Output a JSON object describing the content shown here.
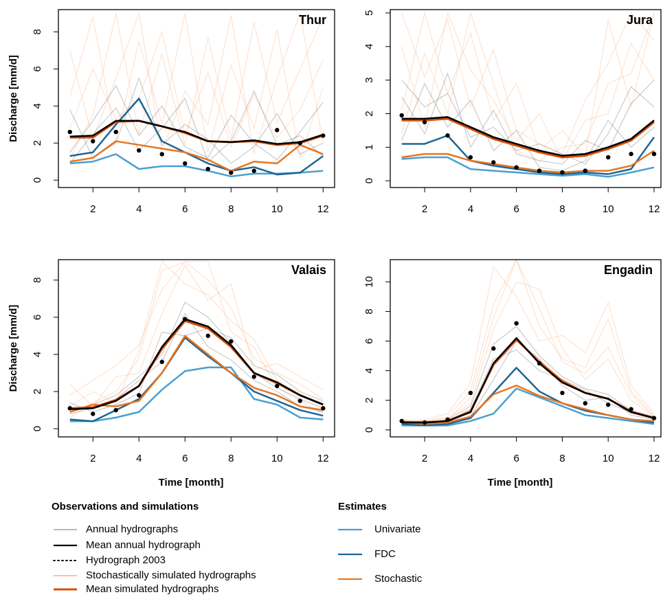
{
  "chart_data": [
    {
      "type": "line",
      "title": "Thur",
      "x": [
        1,
        2,
        3,
        4,
        5,
        6,
        7,
        8,
        9,
        10,
        11,
        12
      ],
      "xlim": [
        0.5,
        12.5
      ],
      "xticks": [
        2,
        4,
        6,
        8,
        10,
        12
      ],
      "ylim": [
        -0.4,
        9.2
      ],
      "yticks": [
        0,
        2,
        4,
        6,
        8
      ],
      "ylabel": "Discharge [mm/d]",
      "series": [
        {
          "lines": [
            [
              1.5,
              3.2,
              5.1,
              2.4,
              4.0,
              1.8,
              1.2,
              3.5,
              2.0,
              1.1,
              2.6,
              4.2
            ],
            [
              3.8,
              1.2,
              2.0,
              5.5,
              1.9,
              3.0,
              2.2,
              0.9,
              1.8,
              3.6,
              1.4,
              2.0
            ],
            [
              0.9,
              2.5,
              3.9,
              1.6,
              2.8,
              4.4,
              1.0,
              2.1,
              4.8,
              1.9,
              2.4,
              1.3
            ]
          ]
        },
        {
          "values": [
            2.35,
            2.4,
            3.2,
            3.2,
            2.9,
            2.6,
            2.1,
            2.05,
            2.15,
            1.95,
            2.05,
            2.45
          ]
        },
        {
          "values": [
            2.6,
            2.1,
            2.6,
            1.6,
            1.4,
            0.9,
            0.6,
            0.4,
            0.5,
            2.7,
            2.0,
            2.4
          ]
        },
        {
          "lines": [
            [
              4.5,
              8.8,
              2.1,
              7.5,
              3.0,
              9.0,
              1.5,
              6.2,
              2.8,
              8.1,
              1.2,
              5.0
            ],
            [
              1.2,
              3.5,
              9.0,
              2.5,
              6.8,
              1.9,
              7.7,
              2.2,
              8.5,
              3.1,
              6.0,
              8.8
            ],
            [
              7.0,
              2.2,
              5.5,
              9.0,
              1.6,
              4.8,
              3.0,
              8.9,
              1.4,
              5.5,
              9.0,
              2.0
            ],
            [
              2.8,
              6.0,
              3.3,
              4.4,
              8.0,
              2.5,
              5.8,
              1.8,
              4.6,
              2.3,
              3.8,
              6.5
            ]
          ]
        },
        {
          "values": [
            2.3,
            2.3,
            3.15,
            3.2,
            2.9,
            2.55,
            2.1,
            2.05,
            2.1,
            1.9,
            2.0,
            2.4
          ]
        },
        {
          "values": [
            0.9,
            1.0,
            1.4,
            0.6,
            0.75,
            0.75,
            0.5,
            0.2,
            0.35,
            0.35,
            0.4,
            0.5
          ]
        },
        {
          "values": [
            1.3,
            1.5,
            3.0,
            4.4,
            2.1,
            1.5,
            0.9,
            0.5,
            0.7,
            0.3,
            0.4,
            1.3
          ]
        },
        {
          "values": [
            1.0,
            1.2,
            2.1,
            1.9,
            1.7,
            1.5,
            1.1,
            0.5,
            1.0,
            0.9,
            1.9,
            1.4
          ]
        }
      ]
    },
    {
      "type": "line",
      "title": "Jura",
      "x": [
        1,
        2,
        3,
        4,
        5,
        6,
        7,
        8,
        9,
        10,
        11,
        12
      ],
      "xlim": [
        0.5,
        12.3
      ],
      "xticks": [
        2,
        4,
        6,
        8,
        10,
        12
      ],
      "ylim": [
        -0.2,
        5.1
      ],
      "yticks": [
        0,
        1,
        2,
        3,
        4,
        5
      ],
      "series": [
        {
          "lines": [
            [
              2.5,
              1.4,
              3.2,
              1.0,
              2.1,
              0.8,
              0.6,
              0.5,
              1.2,
              0.9,
              2.3,
              3.0
            ],
            [
              1.2,
              2.9,
              1.6,
              2.4,
              0.9,
              1.5,
              0.4,
              0.3,
              0.6,
              1.8,
              1.0,
              1.6
            ],
            [
              3.0,
              2.2,
              2.6,
              1.3,
              1.6,
              0.9,
              1.1,
              0.8,
              0.5,
              1.4,
              2.8,
              2.2
            ]
          ]
        },
        {
          "values": [
            1.85,
            1.85,
            1.9,
            1.6,
            1.3,
            1.1,
            0.9,
            0.75,
            0.8,
            1.0,
            1.25,
            1.8
          ]
        },
        {
          "values": [
            1.95,
            1.75,
            1.35,
            0.7,
            0.55,
            0.4,
            0.3,
            0.25,
            0.3,
            0.7,
            0.8,
            0.8
          ]
        },
        {
          "lines": [
            [
              5.0,
              3.1,
              4.8,
              2.2,
              3.9,
              1.5,
              1.1,
              0.8,
              2.4,
              3.5,
              5.0,
              4.2
            ],
            [
              2.1,
              5.0,
              2.6,
              4.4,
              1.8,
              2.9,
              0.9,
              1.5,
              0.7,
              4.8,
              2.2,
              5.0
            ],
            [
              4.0,
              1.6,
              5.0,
              3.3,
              2.4,
              1.2,
              2.0,
              0.6,
              1.8,
              2.0,
              4.1,
              3.0
            ],
            [
              1.4,
              3.8,
              2.0,
              5.0,
              2.9,
              0.9,
              0.6,
              1.0,
              1.1,
              2.9,
              3.2,
              5.0
            ]
          ]
        },
        {
          "values": [
            1.8,
            1.8,
            1.85,
            1.55,
            1.25,
            1.05,
            0.85,
            0.7,
            0.75,
            0.95,
            1.2,
            1.75
          ]
        },
        {
          "values": [
            0.65,
            0.7,
            0.7,
            0.35,
            0.3,
            0.25,
            0.2,
            0.15,
            0.2,
            0.12,
            0.25,
            0.4
          ]
        },
        {
          "values": [
            1.1,
            1.1,
            1.35,
            0.6,
            0.45,
            0.35,
            0.25,
            0.2,
            0.25,
            0.2,
            0.35,
            1.3
          ]
        },
        {
          "values": [
            0.7,
            0.8,
            0.8,
            0.6,
            0.5,
            0.4,
            0.3,
            0.25,
            0.3,
            0.3,
            0.45,
            0.9
          ]
        }
      ]
    },
    {
      "type": "line",
      "title": "Valais",
      "x": [
        1,
        2,
        3,
        4,
        5,
        6,
        7,
        8,
        9,
        10,
        11,
        12
      ],
      "xlim": [
        0.5,
        12.5
      ],
      "xticks": [
        2,
        4,
        6,
        8,
        10,
        12
      ],
      "ylim": [
        -0.44,
        9.1
      ],
      "yticks": [
        0,
        2,
        4,
        6,
        8
      ],
      "xlabel": "Time [month]",
      "ylabel": "Discharge [mm/d]",
      "series": [
        {
          "lines": [
            [
              0.9,
              1.3,
              1.8,
              2.8,
              4.0,
              6.8,
              6.0,
              4.6,
              3.0,
              2.2,
              1.6,
              1.1
            ],
            [
              1.4,
              0.9,
              1.3,
              1.9,
              5.2,
              5.0,
              5.4,
              4.9,
              3.4,
              2.9,
              2.0,
              1.5
            ],
            [
              0.8,
              1.1,
              1.6,
              2.6,
              3.6,
              6.2,
              4.4,
              3.7,
              2.6,
              2.0,
              1.2,
              0.9
            ]
          ]
        },
        {
          "values": [
            1.05,
            1.1,
            1.5,
            2.3,
            4.4,
            5.9,
            5.5,
            4.5,
            3.0,
            2.5,
            1.8,
            1.3
          ]
        },
        {
          "values": [
            1.1,
            0.8,
            1.0,
            1.8,
            3.6,
            5.9,
            5.0,
            4.7,
            2.8,
            2.3,
            1.5,
            1.1
          ]
        },
        {
          "lines": [
            [
              1.8,
              2.6,
              3.4,
              4.5,
              7.5,
              9.0,
              8.0,
              6.5,
              3.8,
              3.0,
              2.4,
              1.6
            ],
            [
              0.6,
              1.4,
              2.0,
              3.8,
              8.5,
              9.0,
              9.0,
              5.2,
              4.4,
              2.2,
              1.5,
              0.8
            ],
            [
              2.4,
              1.2,
              2.8,
              3.0,
              6.2,
              8.8,
              6.9,
              7.8,
              3.2,
              3.5,
              2.8,
              2.1
            ],
            [
              1.2,
              2.0,
              1.4,
              4.2,
              9.0,
              7.8,
              7.2,
              5.8,
              4.8,
              2.6,
              1.9,
              1.3
            ]
          ]
        },
        {
          "values": [
            1.1,
            1.15,
            1.55,
            2.3,
            4.3,
            5.8,
            5.4,
            4.4,
            3.0,
            2.45,
            1.8,
            1.3
          ]
        },
        {
          "values": [
            0.4,
            0.4,
            0.6,
            0.9,
            2.1,
            3.1,
            3.3,
            3.3,
            1.6,
            1.3,
            0.6,
            0.5
          ]
        },
        {
          "values": [
            0.5,
            0.4,
            1.0,
            1.6,
            3.0,
            4.9,
            3.9,
            3.0,
            2.0,
            1.5,
            1.0,
            0.7
          ]
        },
        {
          "values": [
            0.9,
            1.3,
            1.2,
            1.5,
            3.0,
            5.0,
            4.0,
            3.0,
            2.2,
            1.8,
            1.2,
            1.0
          ]
        }
      ]
    },
    {
      "type": "line",
      "title": "Engadin",
      "x": [
        1,
        2,
        3,
        4,
        5,
        6,
        7,
        8,
        9,
        10,
        11,
        12
      ],
      "xlim": [
        0.5,
        12.3
      ],
      "xticks": [
        2,
        4,
        6,
        8,
        10,
        12
      ],
      "ylim": [
        -0.47,
        11.5
      ],
      "yticks": [
        0,
        2,
        4,
        6,
        8,
        10
      ],
      "xlabel": "Time [month]",
      "series": [
        {
          "lines": [
            [
              0.6,
              0.5,
              0.7,
              1.6,
              5.8,
              7.0,
              5.0,
              3.6,
              2.8,
              2.4,
              1.3,
              0.9
            ],
            [
              0.4,
              0.4,
              0.5,
              0.9,
              3.4,
              6.0,
              4.8,
              3.0,
              2.0,
              2.2,
              1.0,
              0.7
            ],
            [
              0.5,
              0.6,
              0.6,
              1.4,
              4.8,
              5.4,
              4.0,
              3.4,
              2.7,
              1.8,
              1.2,
              0.8
            ]
          ]
        },
        {
          "values": [
            0.5,
            0.5,
            0.6,
            1.2,
            4.5,
            6.2,
            4.5,
            3.2,
            2.5,
            2.1,
            1.2,
            0.8
          ]
        },
        {
          "values": [
            0.6,
            0.5,
            0.7,
            2.5,
            5.5,
            7.2,
            4.5,
            2.5,
            1.8,
            1.7,
            1.4,
            0.8
          ]
        },
        {
          "lines": [
            [
              0.7,
              0.6,
              0.9,
              2.6,
              8.5,
              11.5,
              7.0,
              4.8,
              4.2,
              7.5,
              2.6,
              1.0
            ],
            [
              0.5,
              0.6,
              0.8,
              1.8,
              6.8,
              10.0,
              9.5,
              5.5,
              3.4,
              4.8,
              2.0,
              0.9
            ],
            [
              0.6,
              0.7,
              1.1,
              3.2,
              11.0,
              9.0,
              6.0,
              6.4,
              5.2,
              8.6,
              3.0,
              1.1
            ],
            [
              0.6,
              0.5,
              0.7,
              2.2,
              7.6,
              11.5,
              8.2,
              4.6,
              3.8,
              5.6,
              2.4,
              0.9
            ]
          ]
        },
        {
          "values": [
            0.55,
            0.5,
            0.6,
            1.25,
            4.4,
            6.1,
            4.6,
            3.3,
            2.5,
            2.1,
            1.25,
            0.8
          ]
        },
        {
          "values": [
            0.3,
            0.3,
            0.3,
            0.6,
            1.1,
            2.8,
            2.2,
            1.6,
            1.0,
            0.8,
            0.6,
            0.4
          ]
        },
        {
          "values": [
            0.4,
            0.3,
            0.4,
            0.8,
            2.5,
            4.2,
            2.6,
            1.8,
            1.3,
            1.0,
            0.7,
            0.5
          ]
        },
        {
          "values": [
            0.5,
            0.4,
            0.5,
            0.9,
            2.4,
            3.0,
            2.3,
            1.8,
            1.4,
            1.0,
            0.7,
            0.6
          ]
        }
      ]
    }
  ],
  "legend": {
    "groups": [
      {
        "title": "Observations and simulations",
        "items": [
          {
            "name": "Annual hydrographs",
            "color": "#666666",
            "style": "thin"
          },
          {
            "name": "Mean annual hydrograph",
            "color": "#000000",
            "style": "line"
          },
          {
            "name": "Hydrograph 2003",
            "color": "#000000",
            "style": "dots"
          },
          {
            "name": "Stochastically simulated hydrographs",
            "color": "#fcb07a",
            "style": "thin"
          },
          {
            "name": "Mean simulated hydrographs",
            "color": "#d4500c",
            "style": "thick"
          }
        ]
      },
      {
        "title": "Estimates",
        "items": [
          {
            "name": "Univariate",
            "color": "#4a9fcf",
            "style": "line"
          },
          {
            "name": "FDC",
            "color": "#1c6596",
            "style": "line"
          },
          {
            "name": "Stochastic",
            "color": "#e8751e",
            "style": "line"
          }
        ]
      }
    ]
  }
}
